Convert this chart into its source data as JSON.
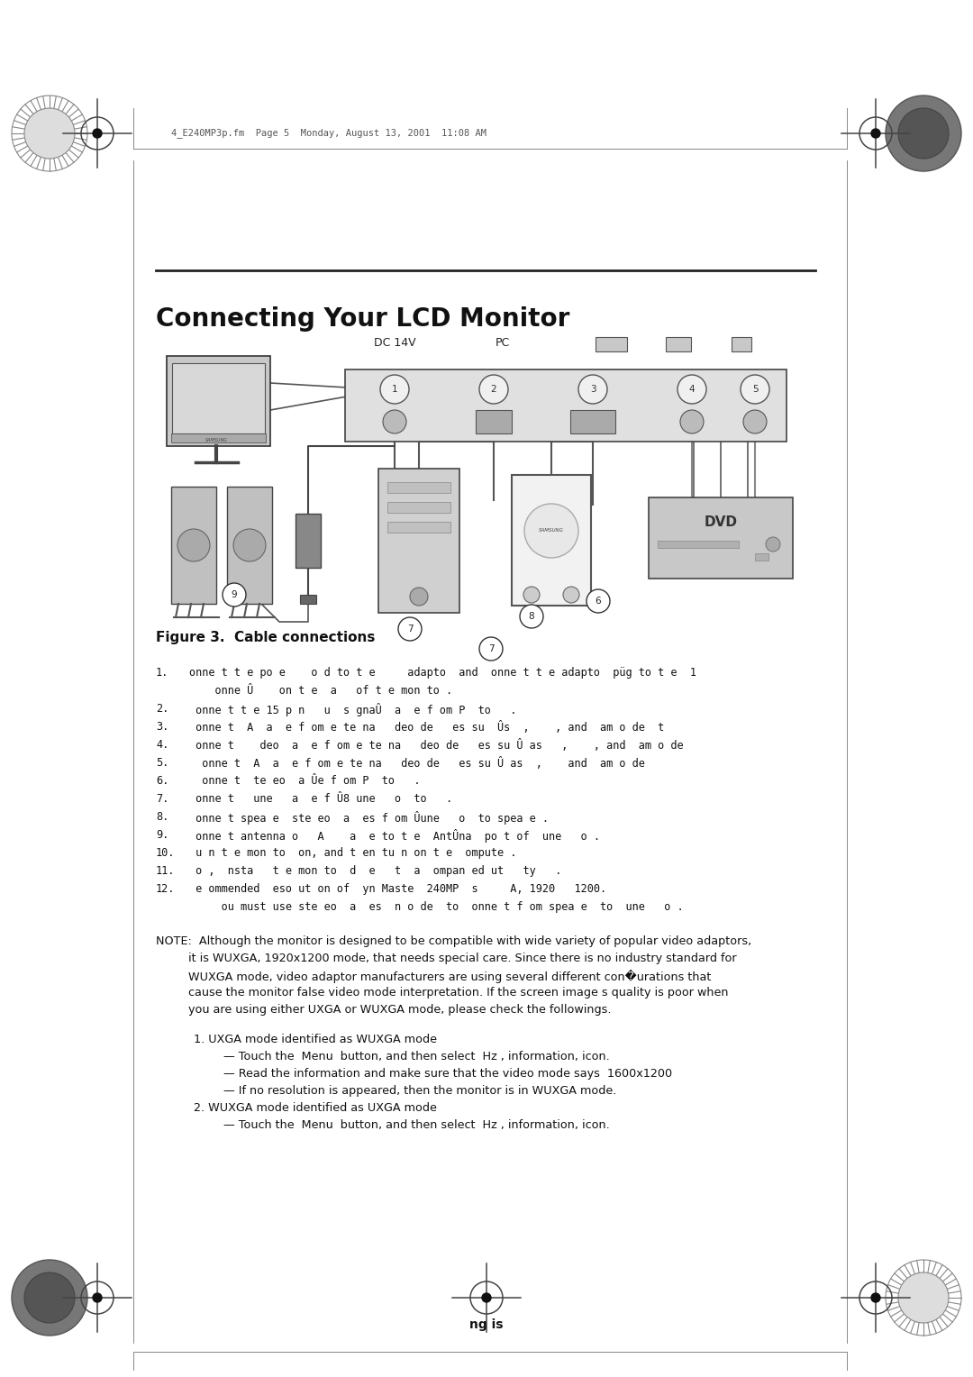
{
  "bg_color": "#ffffff",
  "page_width": 10.8,
  "page_height": 15.28,
  "title": "Connecting Your LCD Monitor",
  "figure_caption": "Figure 3.  Cable connections",
  "header_text": "4_E240MP3p.fm  Page 5  Monday, August 13, 2001  11:08 AM",
  "footer_text": "ng is",
  "list_items": [
    [
      "1.",
      "onne t t e po e    o d to t e     adapto  and  onne t t e adapto  püg to t e  1"
    ],
    [
      "",
      "    onne Û    on t e  a   of t e mon to ."
    ],
    [
      "2.",
      " onne t t e 15 p n   u  s gnaÛ  a  e f om P  to   ."
    ],
    [
      "3.",
      " onne t  A  a  e f om e te na   deo de   es su  Ûs  ,    , and  am o de  t"
    ],
    [
      "4.",
      " onne t    deo  a  e f om e te na   deo de   es su Û as   ,    , and  am o de"
    ],
    [
      "5.",
      "  onne t  A  a  e f om e te na   deo de   es su Û as  ,    and  am o de"
    ],
    [
      "6.",
      "  onne t  te eo  a Ûe f om P  to   ."
    ],
    [
      "7.",
      " onne t   une   a  e f Û8 une   o  to   ."
    ],
    [
      "8.",
      " onne t spea e  ste eo  a  es f om Ûune   o  to spea e ."
    ],
    [
      "9.",
      " onne t antenna o   A    a  e to t e  AntÛna  po t of  une   o ."
    ],
    [
      "10.",
      " u n t e mon to  on, and t en tu n on t e  ompute ."
    ],
    [
      "11.",
      " o ,  nsta   t e mon to  d  e   t  a  ompan ed ut   ty   ."
    ],
    [
      "12.",
      " e ommended  eso ut on of  yn Maste  240MP  s     A, 1920   1200."
    ],
    [
      "",
      "     ou must use ste eo  a  es  n o de  to  onne t f om spea e  to  une   o ."
    ]
  ],
  "note_lines": [
    "NOTE:  Although the monitor is designed to be compatible with wide variety of popular video adaptors,",
    "         it is WUXGA, 1920x1200 mode, that needs special care. Since there is no industry standard for",
    "         WUXGA mode, video adaptor manufacturers are using several different con�urations that",
    "         cause the monitor false video mode interpretation. If the screen image s quality is poor when",
    "         you are using either UXGA or WUXGA mode, please check the followings."
  ],
  "sub_lines": [
    [
      true,
      "1. UXGA mode identified as WUXGA mode"
    ],
    [
      false,
      "    — Touch the  Menu  button, and then select  Hz , information, icon."
    ],
    [
      false,
      "    — Read the information and make sure that the video mode says  1600x1200"
    ],
    [
      false,
      "    — If no resolution is appeared, then the monitor is in WUXGA mode."
    ],
    [
      true,
      "2. WUXGA mode identified as UXGA mode"
    ],
    [
      false,
      "    — Touch the  Menu  button, and then select  Hz , information, icon."
    ]
  ],
  "dc_label": "DC 14V",
  "pc_label": "PC"
}
